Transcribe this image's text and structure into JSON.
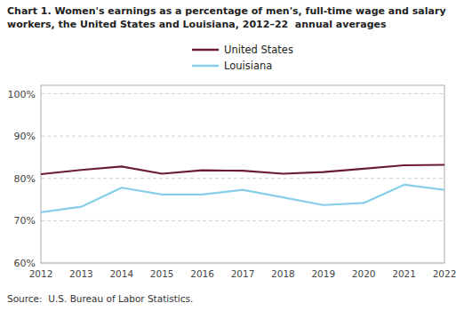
{
  "chart_data": {
    "type": "line",
    "title": [
      "Chart 1. Women's earnings as a percentage of men's, full-time wage and salary",
      "workers, the United States and Louisiana, 2012–22  annual averages"
    ],
    "source": "Source:  U.S. Bureau of Labor Statistics.",
    "x": [
      2012,
      2013,
      2014,
      2015,
      2016,
      2017,
      2018,
      2019,
      2020,
      2021,
      2022
    ],
    "series": [
      {
        "name": "United States",
        "color": "#6b1a38",
        "values": [
          81.0,
          82.0,
          82.8,
          81.1,
          81.9,
          81.8,
          81.1,
          81.5,
          82.3,
          83.1,
          83.2
        ]
      },
      {
        "name": "Louisiana",
        "color": "#87ceeb",
        "values": [
          72.0,
          73.3,
          77.8,
          76.2,
          76.2,
          77.3,
          75.5,
          73.7,
          74.2,
          78.5,
          77.3
        ]
      }
    ],
    "xlim": [
      2012,
      2022
    ],
    "xticks": [
      2012,
      2013,
      2014,
      2015,
      2016,
      2017,
      2018,
      2019,
      2020,
      2021,
      2022
    ],
    "ylim": [
      60,
      102
    ],
    "yticks": [
      {
        "value": 60,
        "label": "60%"
      },
      {
        "value": 70,
        "label": "70%"
      },
      {
        "value": 80,
        "label": "80%"
      },
      {
        "value": 90,
        "label": "90%"
      },
      {
        "value": 100,
        "label": "100%"
      }
    ],
    "grid": true,
    "legend": "top"
  }
}
